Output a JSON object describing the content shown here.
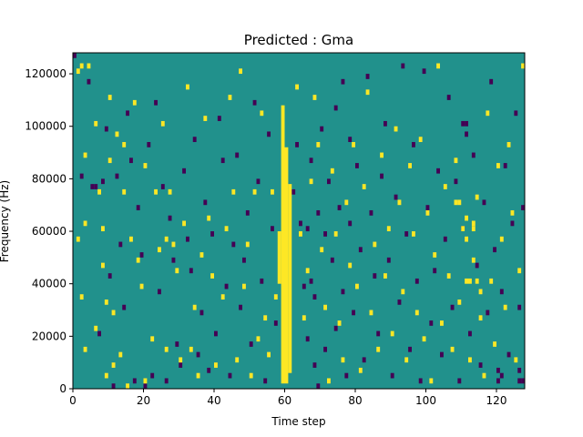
{
  "chart_data": {
    "type": "heatmap",
    "title": "Predicted : Gma",
    "xlabel": "Time step",
    "ylabel": "Frequency (Hz)",
    "xlim": [
      0,
      128
    ],
    "ylim": [
      0,
      128000
    ],
    "xticks": [
      0,
      20,
      40,
      60,
      80,
      100,
      120
    ],
    "yticks": [
      0,
      20000,
      40000,
      60000,
      80000,
      100000,
      120000
    ],
    "grid": false,
    "legend": "none",
    "n_time_steps": 128,
    "n_freq_bins": 64,
    "colors": {
      "background": "#21918c",
      "low": "#440154",
      "high": "#fde725"
    },
    "vertical_bands_high": [
      {
        "x": 59,
        "y0": 2000,
        "y1": 108000
      },
      {
        "x": 60,
        "y0": 2000,
        "y1": 92000
      },
      {
        "x": 61,
        "y0": 6000,
        "y1": 78000
      },
      {
        "x": 58,
        "y0": 40000,
        "y1": 60000
      }
    ],
    "cells_high": [
      [
        1,
        120000
      ],
      [
        1,
        56000
      ],
      [
        2,
        34000
      ],
      [
        2,
        122000
      ],
      [
        3,
        14000
      ],
      [
        3,
        88000
      ],
      [
        3,
        62000
      ],
      [
        4,
        122000
      ],
      [
        6,
        22000
      ],
      [
        6,
        100000
      ],
      [
        7,
        74000
      ],
      [
        8,
        46000
      ],
      [
        8,
        60000
      ],
      [
        9,
        32000
      ],
      [
        9,
        4000
      ],
      [
        10,
        110000
      ],
      [
        10,
        86000
      ],
      [
        11,
        8000
      ],
      [
        11,
        28000
      ],
      [
        12,
        96000
      ],
      [
        13,
        12000
      ],
      [
        14,
        74000
      ],
      [
        14,
        92000
      ],
      [
        15,
        0
      ],
      [
        16,
        56000
      ],
      [
        17,
        108000
      ],
      [
        18,
        48000
      ],
      [
        19,
        38000
      ],
      [
        20,
        84000
      ],
      [
        20,
        2000
      ],
      [
        22,
        18000
      ],
      [
        23,
        74000
      ],
      [
        24,
        52000
      ],
      [
        25,
        100000
      ],
      [
        26,
        14000
      ],
      [
        26,
        56000
      ],
      [
        27,
        74000
      ],
      [
        28,
        54000
      ],
      [
        29,
        44000
      ],
      [
        30,
        10000
      ],
      [
        31,
        62000
      ],
      [
        32,
        114000
      ],
      [
        33,
        14000
      ],
      [
        34,
        30000
      ],
      [
        35,
        4000
      ],
      [
        36,
        50000
      ],
      [
        37,
        102000
      ],
      [
        38,
        64000
      ],
      [
        39,
        42000
      ],
      [
        40,
        8000
      ],
      [
        42,
        34000
      ],
      [
        43,
        60000
      ],
      [
        44,
        110000
      ],
      [
        45,
        74000
      ],
      [
        46,
        10000
      ],
      [
        47,
        120000
      ],
      [
        48,
        38000
      ],
      [
        49,
        54000
      ],
      [
        50,
        4000
      ],
      [
        51,
        74000
      ],
      [
        52,
        18000
      ],
      [
        53,
        104000
      ],
      [
        54,
        26000
      ],
      [
        55,
        12000
      ],
      [
        56,
        74000
      ],
      [
        57,
        34000
      ],
      [
        63,
        114000
      ],
      [
        64,
        58000
      ],
      [
        65,
        26000
      ],
      [
        66,
        44000
      ],
      [
        67,
        78000
      ],
      [
        68,
        110000
      ],
      [
        69,
        92000
      ],
      [
        70,
        52000
      ],
      [
        71,
        30000
      ],
      [
        72,
        2000
      ],
      [
        73,
        82000
      ],
      [
        74,
        58000
      ],
      [
        75,
        24000
      ],
      [
        76,
        10000
      ],
      [
        77,
        70000
      ],
      [
        78,
        46000
      ],
      [
        79,
        92000
      ],
      [
        80,
        38000
      ],
      [
        81,
        6000
      ],
      [
        82,
        76000
      ],
      [
        83,
        112000
      ],
      [
        84,
        28000
      ],
      [
        85,
        54000
      ],
      [
        86,
        14000
      ],
      [
        87,
        88000
      ],
      [
        88,
        42000
      ],
      [
        89,
        60000
      ],
      [
        90,
        20000
      ],
      [
        91,
        98000
      ],
      [
        92,
        70000
      ],
      [
        93,
        36000
      ],
      [
        94,
        10000
      ],
      [
        95,
        84000
      ],
      [
        96,
        58000
      ],
      [
        97,
        28000
      ],
      [
        98,
        94000
      ],
      [
        99,
        18000
      ],
      [
        100,
        66000
      ],
      [
        101,
        2000
      ],
      [
        102,
        50000
      ],
      [
        103,
        122000
      ],
      [
        104,
        24000
      ],
      [
        105,
        76000
      ],
      [
        106,
        42000
      ],
      [
        107,
        14000
      ],
      [
        108,
        86000
      ],
      [
        109,
        32000
      ],
      [
        110,
        60000
      ],
      [
        111,
        64000
      ],
      [
        111,
        56000
      ],
      [
        112,
        10000
      ],
      [
        113,
        48000
      ],
      [
        114,
        72000
      ],
      [
        115,
        26000
      ],
      [
        116,
        4000
      ],
      [
        117,
        104000
      ],
      [
        118,
        40000
      ],
      [
        119,
        16000
      ],
      [
        120,
        84000
      ],
      [
        121,
        56000
      ],
      [
        122,
        30000
      ],
      [
        123,
        92000
      ],
      [
        124,
        66000
      ],
      [
        125,
        10000
      ],
      [
        126,
        44000
      ],
      [
        127,
        122000
      ],
      [
        112,
        40000
      ],
      [
        111,
        40000
      ],
      [
        114,
        40000
      ],
      [
        115,
        36000
      ],
      [
        113,
        60000
      ],
      [
        113,
        62000
      ],
      [
        108,
        70000
      ],
      [
        109,
        70000
      ]
    ],
    "cells_low": [
      [
        0,
        126000
      ],
      [
        2,
        80000
      ],
      [
        4,
        116000
      ],
      [
        5,
        76000
      ],
      [
        6,
        76000
      ],
      [
        7,
        20000
      ],
      [
        8,
        78000
      ],
      [
        9,
        98000
      ],
      [
        10,
        42000
      ],
      [
        11,
        0
      ],
      [
        12,
        80000
      ],
      [
        13,
        54000
      ],
      [
        14,
        30000
      ],
      [
        15,
        104000
      ],
      [
        16,
        86000
      ],
      [
        17,
        2000
      ],
      [
        18,
        68000
      ],
      [
        19,
        50000
      ],
      [
        20,
        0
      ],
      [
        21,
        92000
      ],
      [
        22,
        4000
      ],
      [
        23,
        108000
      ],
      [
        24,
        36000
      ],
      [
        25,
        76000
      ],
      [
        26,
        2000
      ],
      [
        27,
        64000
      ],
      [
        28,
        48000
      ],
      [
        29,
        16000
      ],
      [
        30,
        8000
      ],
      [
        31,
        82000
      ],
      [
        32,
        56000
      ],
      [
        33,
        44000
      ],
      [
        34,
        94000
      ],
      [
        35,
        12000
      ],
      [
        36,
        28000
      ],
      [
        37,
        70000
      ],
      [
        38,
        6000
      ],
      [
        39,
        58000
      ],
      [
        40,
        20000
      ],
      [
        41,
        102000
      ],
      [
        42,
        86000
      ],
      [
        43,
        38000
      ],
      [
        44,
        4000
      ],
      [
        45,
        54000
      ],
      [
        46,
        88000
      ],
      [
        47,
        30000
      ],
      [
        48,
        48000
      ],
      [
        49,
        66000
      ],
      [
        50,
        16000
      ],
      [
        51,
        108000
      ],
      [
        52,
        78000
      ],
      [
        53,
        40000
      ],
      [
        54,
        2000
      ],
      [
        55,
        96000
      ],
      [
        56,
        60000
      ],
      [
        57,
        24000
      ],
      [
        62,
        74000
      ],
      [
        63,
        92000
      ],
      [
        64,
        62000
      ],
      [
        65,
        38000
      ],
      [
        66,
        18000
      ],
      [
        66,
        60000
      ],
      [
        67,
        86000
      ],
      [
        67,
        40000
      ],
      [
        68,
        34000
      ],
      [
        68,
        8000
      ],
      [
        69,
        66000
      ],
      [
        69,
        0
      ],
      [
        70,
        98000
      ],
      [
        71,
        58000
      ],
      [
        71,
        14000
      ],
      [
        72,
        78000
      ],
      [
        73,
        48000
      ],
      [
        74,
        106000
      ],
      [
        74,
        22000
      ],
      [
        75,
        68000
      ],
      [
        76,
        116000
      ],
      [
        76,
        36000
      ],
      [
        77,
        4000
      ],
      [
        78,
        94000
      ],
      [
        78,
        62000
      ],
      [
        79,
        28000
      ],
      [
        80,
        84000
      ],
      [
        81,
        52000
      ],
      [
        82,
        10000
      ],
      [
        83,
        118000
      ],
      [
        84,
        66000
      ],
      [
        85,
        42000
      ],
      [
        86,
        20000
      ],
      [
        87,
        80000
      ],
      [
        88,
        100000
      ],
      [
        89,
        48000
      ],
      [
        90,
        4000
      ],
      [
        91,
        72000
      ],
      [
        92,
        32000
      ],
      [
        93,
        122000
      ],
      [
        94,
        58000
      ],
      [
        95,
        14000
      ],
      [
        96,
        92000
      ],
      [
        97,
        40000
      ],
      [
        98,
        2000
      ],
      [
        99,
        120000
      ],
      [
        100,
        68000
      ],
      [
        101,
        24000
      ],
      [
        102,
        44000
      ],
      [
        103,
        82000
      ],
      [
        104,
        12000
      ],
      [
        105,
        56000
      ],
      [
        106,
        110000
      ],
      [
        107,
        30000
      ],
      [
        108,
        78000
      ],
      [
        109,
        2000
      ],
      [
        110,
        60000
      ],
      [
        111,
        96000
      ],
      [
        112,
        20000
      ],
      [
        113,
        88000
      ],
      [
        114,
        46000
      ],
      [
        115,
        8000
      ],
      [
        116,
        70000
      ],
      [
        117,
        28000
      ],
      [
        118,
        116000
      ],
      [
        119,
        52000
      ],
      [
        120,
        2000
      ],
      [
        121,
        36000
      ],
      [
        122,
        84000
      ],
      [
        123,
        12000
      ],
      [
        124,
        62000
      ],
      [
        125,
        104000
      ],
      [
        126,
        6000
      ],
      [
        127,
        68000
      ],
      [
        126,
        30000
      ],
      [
        127,
        2000
      ],
      [
        126,
        2000
      ],
      [
        120,
        6000
      ],
      [
        121,
        4000
      ],
      [
        110,
        100000
      ],
      [
        111,
        100000
      ]
    ]
  }
}
